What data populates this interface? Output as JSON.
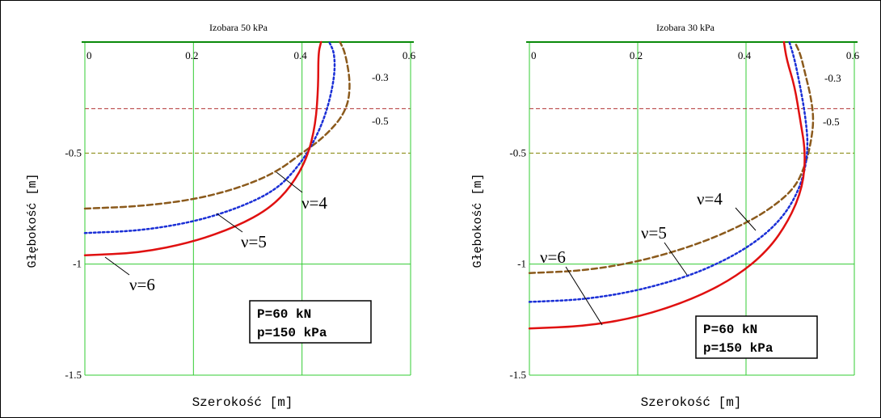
{
  "chart_data": [
    {
      "type": "line",
      "title": "Izobara 50 kPa",
      "xlabel": "Szerokość [m]",
      "ylabel": "Głębokość [m]",
      "xlim": [
        0,
        0.6
      ],
      "ylim": [
        -1.5,
        0
      ],
      "x_ticks": [
        "0",
        "0.2",
        "0.4",
        "0.6"
      ],
      "y_ticks": [
        "-0.5",
        "-1",
        "-1.5"
      ],
      "grid": true,
      "ref_lines": [
        {
          "y": -0.3,
          "label": "-0.3",
          "color": "#b03030"
        },
        {
          "y": -0.5,
          "label": "-0.5",
          "color": "#808000"
        }
      ],
      "series": [
        {
          "name": "ν=4",
          "color": "#8b5a1c",
          "style": "dashed",
          "points": [
            [
              0.0,
              -0.75
            ],
            [
              0.1,
              -0.74
            ],
            [
              0.2,
              -0.71
            ],
            [
              0.28,
              -0.66
            ],
            [
              0.35,
              -0.59
            ],
            [
              0.4,
              -0.5
            ],
            [
              0.44,
              -0.43
            ],
            [
              0.48,
              -0.32
            ],
            [
              0.49,
              -0.2
            ],
            [
              0.48,
              -0.05
            ],
            [
              0.47,
              0
            ]
          ]
        },
        {
          "name": "ν=5",
          "color": "#1a2fd6",
          "style": "dotted",
          "points": [
            [
              0.0,
              -0.86
            ],
            [
              0.1,
              -0.85
            ],
            [
              0.2,
              -0.81
            ],
            [
              0.28,
              -0.75
            ],
            [
              0.35,
              -0.67
            ],
            [
              0.39,
              -0.57
            ],
            [
              0.42,
              -0.46
            ],
            [
              0.445,
              -0.32
            ],
            [
              0.46,
              -0.16
            ],
            [
              0.46,
              -0.05
            ],
            [
              0.45,
              0
            ]
          ]
        },
        {
          "name": "ν=6",
          "color": "#e01010",
          "style": "solid",
          "points": [
            [
              0.0,
              -0.96
            ],
            [
              0.1,
              -0.95
            ],
            [
              0.2,
              -0.9
            ],
            [
              0.28,
              -0.83
            ],
            [
              0.34,
              -0.75
            ],
            [
              0.38,
              -0.65
            ],
            [
              0.41,
              -0.52
            ],
            [
              0.425,
              -0.37
            ],
            [
              0.43,
              -0.2
            ],
            [
              0.43,
              -0.05
            ],
            [
              0.435,
              0
            ]
          ]
        }
      ],
      "labels": [
        "-0.3",
        "-0.5",
        "ν=4",
        "ν=5",
        "ν=6"
      ],
      "annotation": [
        "P=60 kN",
        "p=150 kPa"
      ]
    },
    {
      "type": "line",
      "title": "Izobara 30 kPa",
      "xlabel": "Szerokość [m]",
      "ylabel": "Głębokość [m]",
      "xlim": [
        0,
        0.6
      ],
      "ylim": [
        -1.5,
        0
      ],
      "x_ticks": [
        "0",
        "0.2",
        "0.4",
        "0.6"
      ],
      "y_ticks": [
        "-0.5",
        "-1",
        "-1.5"
      ],
      "grid": true,
      "ref_lines": [
        {
          "y": -0.3,
          "label": "-0.3",
          "color": "#b03030"
        },
        {
          "y": -0.5,
          "label": "-0.5",
          "color": "#808000"
        }
      ],
      "series": [
        {
          "name": "ν=4",
          "color": "#8b5a1c",
          "style": "dashed",
          "points": [
            [
              0.0,
              -1.04
            ],
            [
              0.1,
              -1.03
            ],
            [
              0.2,
              -0.99
            ],
            [
              0.3,
              -0.92
            ],
            [
              0.38,
              -0.84
            ],
            [
              0.44,
              -0.76
            ],
            [
              0.49,
              -0.66
            ],
            [
              0.51,
              -0.55
            ],
            [
              0.52,
              -0.45
            ],
            [
              0.525,
              -0.35
            ],
            [
              0.52,
              -0.25
            ],
            [
              0.51,
              -0.15
            ],
            [
              0.5,
              -0.05
            ],
            [
              0.49,
              0
            ]
          ]
        },
        {
          "name": "ν=5",
          "color": "#1a2fd6",
          "style": "dotted",
          "points": [
            [
              0.0,
              -1.17
            ],
            [
              0.1,
              -1.16
            ],
            [
              0.2,
              -1.12
            ],
            [
              0.3,
              -1.05
            ],
            [
              0.38,
              -0.96
            ],
            [
              0.44,
              -0.86
            ],
            [
              0.48,
              -0.75
            ],
            [
              0.505,
              -0.62
            ],
            [
              0.515,
              -0.48
            ],
            [
              0.51,
              -0.34
            ],
            [
              0.5,
              -0.2
            ],
            [
              0.49,
              -0.08
            ],
            [
              0.48,
              0
            ]
          ]
        },
        {
          "name": "ν=6",
          "color": "#e01010",
          "style": "solid",
          "points": [
            [
              0.0,
              -1.29
            ],
            [
              0.1,
              -1.28
            ],
            [
              0.2,
              -1.24
            ],
            [
              0.3,
              -1.16
            ],
            [
              0.38,
              -1.06
            ],
            [
              0.44,
              -0.94
            ],
            [
              0.48,
              -0.8
            ],
            [
              0.505,
              -0.65
            ],
            [
              0.51,
              -0.5
            ],
            [
              0.5,
              -0.35
            ],
            [
              0.49,
              -0.2
            ],
            [
              0.475,
              -0.08
            ],
            [
              0.47,
              0
            ]
          ]
        }
      ],
      "labels": [
        "-0.3",
        "-0.5",
        "ν=4",
        "ν=5",
        "ν=6"
      ],
      "annotation": [
        "P=60 kN",
        "p=150 kPa"
      ]
    }
  ]
}
